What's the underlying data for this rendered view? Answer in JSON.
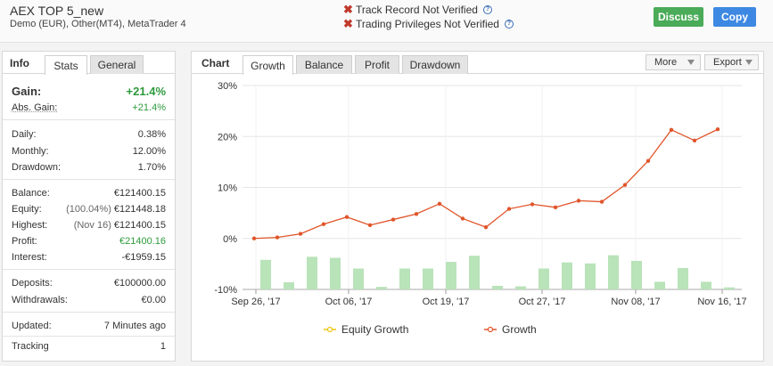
{
  "header": {
    "account_title": "AEX TOP 5_new",
    "account_subtitle": "Demo (EUR), Other(MT4), MetaTrader 4",
    "verify": [
      {
        "label": "Track Record Not Verified",
        "icon": "cross-icon"
      },
      {
        "label": "Trading Privileges Not Verified",
        "icon": "cross-icon"
      }
    ],
    "help_glyph": "?",
    "discuss_label": "Discuss",
    "copy_label": "Copy"
  },
  "info_panel": {
    "title": "Info",
    "tabs": [
      {
        "label": "Stats",
        "active": true
      },
      {
        "label": "General",
        "active": false
      }
    ],
    "gain_label": "Gain:",
    "gain_value": "+21.4%",
    "abs_gain_label": "Abs. Gain:",
    "abs_gain_value": "+21.4%",
    "daily_label": "Daily:",
    "daily_value": "0.38%",
    "monthly_label": "Monthly:",
    "monthly_value": "12.00%",
    "drawdown_label": "Drawdown:",
    "drawdown_value": "1.70%",
    "balance_label": "Balance:",
    "balance_value": "€121400.15",
    "equity_label": "Equity:",
    "equity_note": "(100.04%)",
    "equity_value": "€121448.18",
    "highest_label": "Highest:",
    "highest_note": "(Nov 16)",
    "highest_value": "€121400.15",
    "profit_label": "Profit:",
    "profit_value": "€21400.16",
    "interest_label": "Interest:",
    "interest_value": "-€1959.15",
    "deposits_label": "Deposits:",
    "deposits_value": "€100000.00",
    "withdrawals_label": "Withdrawals:",
    "withdrawals_value": "€0.00",
    "updated_label": "Updated:",
    "updated_value": "7 Minutes ago",
    "tracking_label": "Tracking",
    "tracking_value": "1"
  },
  "chart_panel": {
    "title": "Chart",
    "tabs": [
      {
        "label": "Growth",
        "active": true
      },
      {
        "label": "Balance",
        "active": false
      },
      {
        "label": "Profit",
        "active": false
      },
      {
        "label": "Drawdown",
        "active": false
      }
    ],
    "more_label": "More",
    "export_label": "Export"
  },
  "colors": {
    "gain_green": "#2e9a3c",
    "discuss_green": "#4aab58",
    "copy_blue": "#3d88e2",
    "growth_line": "#e0552a",
    "equity_line": "#f1c40f",
    "bar_fill": "#b9e3b9"
  },
  "chart_data": {
    "type": "line",
    "y_ticks": [
      "30%",
      "20%",
      "10%",
      "0%",
      "-10%"
    ],
    "ylim": [
      -10,
      30
    ],
    "x_ticks": [
      "Sep 26, '17",
      "Oct 06, '17",
      "Oct 19, '17",
      "Oct 27, '17",
      "Nov 08, '17",
      "Nov 16, '17"
    ],
    "series": [
      {
        "name": "Growth",
        "values": [
          0.0,
          0.2,
          0.9,
          2.8,
          4.2,
          2.6,
          3.7,
          4.8,
          6.8,
          3.9,
          2.2,
          5.8,
          6.7,
          6.1,
          7.4,
          7.2,
          10.5,
          15.2,
          21.3,
          19.2,
          21.4
        ]
      },
      {
        "name": "Equity Growth",
        "values": []
      }
    ],
    "bars": [
      -4.2,
      -8.6,
      -3.6,
      -3.8,
      -5.9,
      -9.5,
      -5.9,
      -5.9,
      -4.6,
      -3.4,
      -9.3,
      -9.4,
      -5.9,
      -4.7,
      -4.9,
      -3.3,
      -4.4,
      -8.5,
      -5.8,
      -8.5,
      -9.6
    ],
    "legend": [
      "Equity Growth",
      "Growth"
    ],
    "legend_position": "bottom",
    "grid": true
  }
}
